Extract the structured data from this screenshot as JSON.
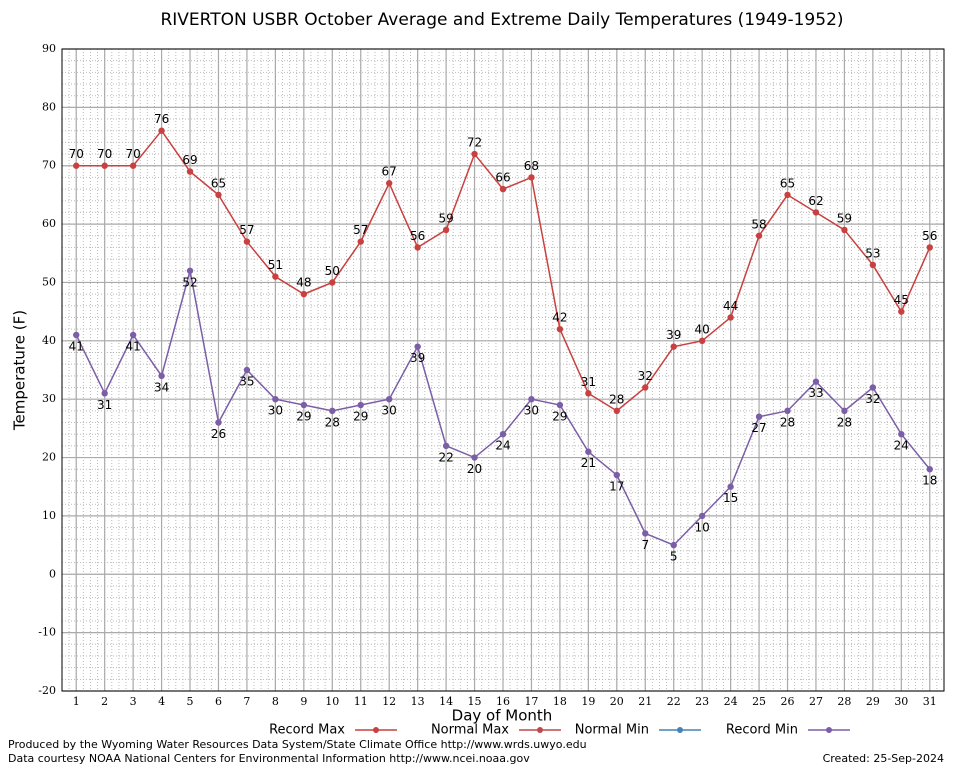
{
  "chart_data": {
    "type": "line",
    "title": "RIVERTON USBR October Average and Extreme Daily Temperatures (1949-1952)",
    "x_label": "Day of Month",
    "y_label": "Temperature (F)",
    "x": [
      1,
      2,
      3,
      4,
      5,
      6,
      7,
      8,
      9,
      10,
      11,
      12,
      13,
      14,
      15,
      16,
      17,
      18,
      19,
      20,
      21,
      22,
      23,
      24,
      25,
      26,
      27,
      28,
      29,
      30,
      31
    ],
    "xlim": [
      0.5,
      31.5
    ],
    "xticks": [
      1,
      2,
      3,
      4,
      5,
      6,
      7,
      8,
      9,
      10,
      11,
      12,
      13,
      14,
      15,
      16,
      17,
      18,
      19,
      20,
      21,
      22,
      23,
      24,
      25,
      26,
      27,
      28,
      29,
      30,
      31
    ],
    "ylim": [
      -20,
      90
    ],
    "yticks": [
      -20,
      -10,
      0,
      10,
      20,
      30,
      40,
      50,
      60,
      70,
      80,
      90
    ],
    "grid": true,
    "series": [
      {
        "name": "Record Max",
        "color": "#c8403f",
        "label_side": "above",
        "values": [
          70,
          70,
          70,
          76,
          69,
          65,
          57,
          51,
          48,
          50,
          57,
          67,
          56,
          59,
          72,
          66,
          68,
          42,
          31,
          28,
          32,
          39,
          40,
          44,
          58,
          65,
          62,
          59,
          53,
          45,
          56
        ]
      },
      {
        "name": "Normal Max",
        "color": "#c04848"
      },
      {
        "name": "Normal Min",
        "color": "#4682b4"
      },
      {
        "name": "Record Min",
        "color": "#7b5ea7",
        "label_side": "below",
        "values": [
          41,
          31,
          41,
          34,
          52,
          26,
          35,
          30,
          29,
          28,
          29,
          30,
          39,
          22,
          20,
          24,
          30,
          29,
          21,
          17,
          7,
          5,
          10,
          15,
          27,
          28,
          33,
          28,
          32,
          24,
          18
        ]
      }
    ],
    "footer_left": [
      "Produced by the Wyoming Water Resources Data System/State Climate Office http://www.wrds.uwyo.edu",
      "Data courtesy NOAA National Centers for Environmental Information http://www.ncei.noaa.gov"
    ],
    "footer_right": "Created:  25-Sep-2024"
  }
}
